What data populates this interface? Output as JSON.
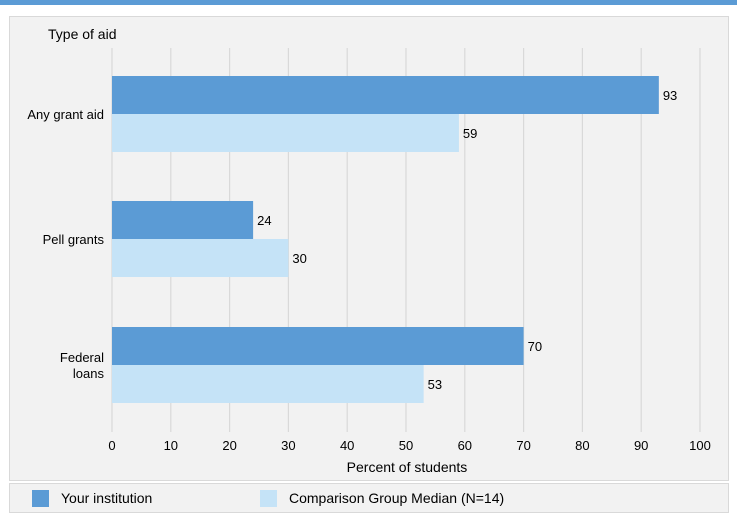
{
  "chart_data": {
    "type": "bar",
    "orientation": "horizontal",
    "ylabel": "Type of aid",
    "xlabel": "Percent of students",
    "categories": [
      "Any grant aid",
      "Pell grants",
      "Federal loans"
    ],
    "series": [
      {
        "name": "Your institution",
        "values": [
          93,
          24,
          70
        ],
        "color": "#5b9bd5"
      },
      {
        "name": "Comparison Group Median (N=14)",
        "values": [
          59,
          30,
          53
        ],
        "color": "#c5e3f7"
      }
    ],
    "xlim": [
      0,
      100
    ],
    "xticks": [
      0,
      10,
      20,
      30,
      40,
      50,
      60,
      70,
      80,
      90,
      100
    ],
    "grid": true,
    "legend": "bottom"
  },
  "colors": {
    "accent": "#5b9bd5",
    "panel": "#f2f2f2",
    "gridline": "#d9d9d9"
  }
}
